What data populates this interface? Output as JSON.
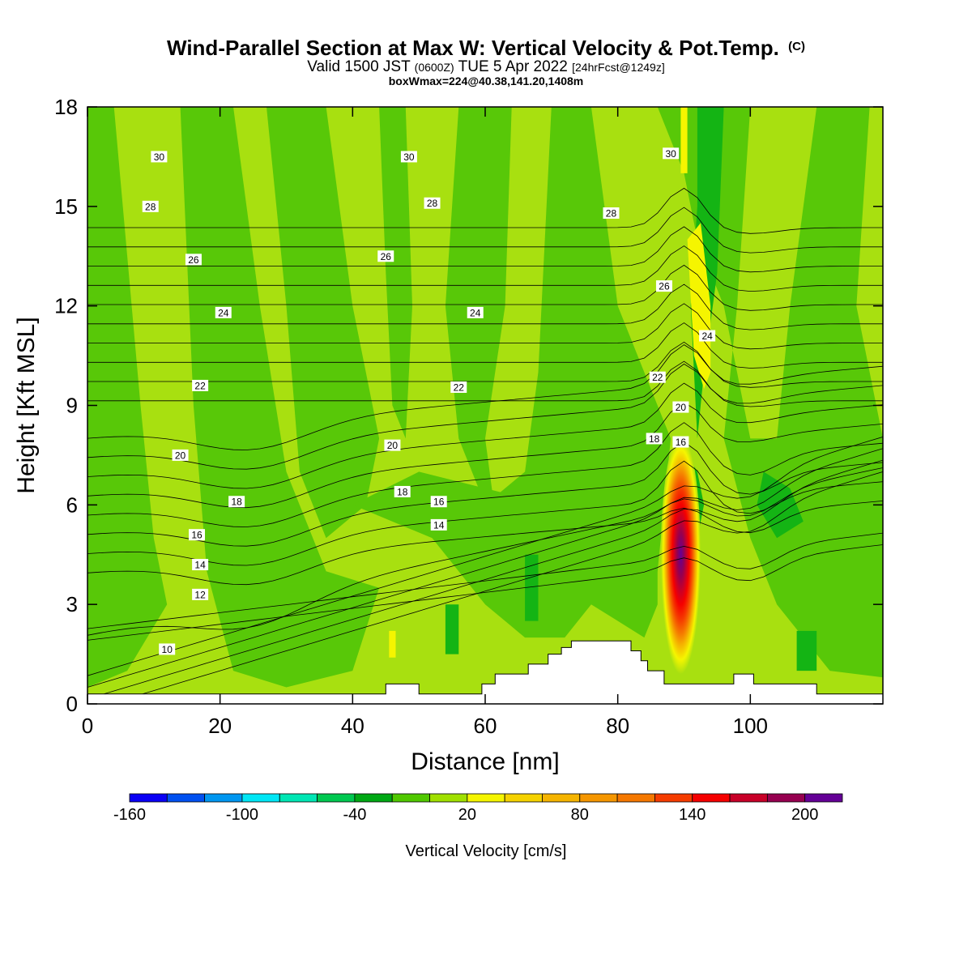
{
  "title": {
    "main": "Wind-Parallel Section at Max W: Vertical Velocity & Pot.Temp.",
    "copyright": "(C)",
    "valid_prefix": "Valid 1500 JST",
    "valid_utc": "(0600Z)",
    "valid_date": "TUE 5 Apr 2022",
    "valid_fcst": "[24hrFcst@1249z]",
    "box": "boxWmax=224@40.38,141.20,1408m"
  },
  "chart_data": {
    "type": "contour",
    "xlabel": "Distance [nm]",
    "ylabel": "Height [Kft MSL]",
    "xlim": [
      0,
      120
    ],
    "ylim": [
      0,
      18
    ],
    "x_ticks": [
      "0",
      "20",
      "40",
      "60",
      "80",
      "100"
    ],
    "x_tick_values": [
      0,
      20,
      40,
      60,
      80,
      100
    ],
    "y_ticks": [
      "0",
      "3",
      "6",
      "9",
      "12",
      "15",
      "18"
    ],
    "y_tick_values": [
      0,
      3,
      6,
      9,
      12,
      15,
      18
    ],
    "colorbar": {
      "label": "Vertical Velocity [cm/s]",
      "levels": [
        -160,
        -140,
        -120,
        -100,
        -80,
        -60,
        -40,
        -20,
        0,
        20,
        40,
        60,
        80,
        100,
        120,
        140,
        160,
        180,
        200,
        220
      ],
      "colors": [
        "#0a00f5",
        "#0050f0",
        "#0096f0",
        "#00e6f5",
        "#00e6b4",
        "#00c850",
        "#00a814",
        "#50c800",
        "#a0e000",
        "#f5f500",
        "#f5d200",
        "#f5b400",
        "#f59600",
        "#f57800",
        "#f53c00",
        "#f50000",
        "#c80028",
        "#960050",
        "#640096"
      ],
      "tick_labels": [
        "-160",
        "-100",
        "-40",
        "20",
        "80",
        "140",
        "200"
      ],
      "tick_values": [
        -160,
        -100,
        -40,
        20,
        80,
        140,
        200
      ]
    },
    "fill_colors": {
      "background": "#a8e010",
      "weak_down": "#58c808",
      "moderate_down": "#14b414",
      "weak_up": "#f5f500",
      "max_updraft": "#640096"
    },
    "max_updraft_cm_s": 224,
    "max_updraft_location": {
      "distance_nm": 89.5,
      "height_kft": 4.5
    },
    "theta_contour_labels": [
      {
        "text": "30",
        "x": 10.8,
        "y": 16.5
      },
      {
        "text": "30",
        "x": 48.5,
        "y": 16.5
      },
      {
        "text": "30",
        "x": 88.0,
        "y": 16.6
      },
      {
        "text": "28",
        "x": 9.5,
        "y": 15.0
      },
      {
        "text": "28",
        "x": 52.0,
        "y": 15.1
      },
      {
        "text": "28",
        "x": 79.0,
        "y": 14.8
      },
      {
        "text": "26",
        "x": 16.0,
        "y": 13.4
      },
      {
        "text": "26",
        "x": 45.0,
        "y": 13.5
      },
      {
        "text": "26",
        "x": 87.0,
        "y": 12.6
      },
      {
        "text": "24",
        "x": 20.5,
        "y": 11.8
      },
      {
        "text": "24",
        "x": 58.5,
        "y": 11.8
      },
      {
        "text": "24",
        "x": 93.5,
        "y": 11.1
      },
      {
        "text": "22",
        "x": 17.0,
        "y": 9.6
      },
      {
        "text": "22",
        "x": 56.0,
        "y": 9.55
      },
      {
        "text": "22",
        "x": 86.0,
        "y": 9.85
      },
      {
        "text": "20",
        "x": 14.0,
        "y": 7.5
      },
      {
        "text": "20",
        "x": 46.0,
        "y": 7.8
      },
      {
        "text": "20",
        "x": 89.5,
        "y": 8.95
      },
      {
        "text": "18",
        "x": 22.5,
        "y": 6.1
      },
      {
        "text": "18",
        "x": 47.5,
        "y": 6.4
      },
      {
        "text": "18",
        "x": 85.5,
        "y": 8.0
      },
      {
        "text": "16",
        "x": 16.5,
        "y": 5.1
      },
      {
        "text": "16",
        "x": 53.0,
        "y": 6.1
      },
      {
        "text": "16",
        "x": 89.5,
        "y": 7.9
      },
      {
        "text": "14",
        "x": 17.0,
        "y": 4.2
      },
      {
        "text": "14",
        "x": 53.0,
        "y": 5.4
      },
      {
        "text": "12",
        "x": 17.0,
        "y": 3.3
      },
      {
        "text": "10",
        "x": 12.0,
        "y": 1.65
      }
    ],
    "terrain": [
      [
        0,
        0.3
      ],
      [
        45,
        0.3
      ],
      [
        45,
        0.6
      ],
      [
        50,
        0.6
      ],
      [
        50,
        0.3
      ],
      [
        59.5,
        0.3
      ],
      [
        59.5,
        0.6
      ],
      [
        61.5,
        0.6
      ],
      [
        61.5,
        0.9
      ],
      [
        66.5,
        0.9
      ],
      [
        66.5,
        1.2
      ],
      [
        69.5,
        1.2
      ],
      [
        69.5,
        1.5
      ],
      [
        71.5,
        1.5
      ],
      [
        71.5,
        1.7
      ],
      [
        73,
        1.7
      ],
      [
        73,
        1.9
      ],
      [
        82,
        1.9
      ],
      [
        82,
        1.6
      ],
      [
        83.5,
        1.6
      ],
      [
        83.5,
        1.3
      ],
      [
        84.5,
        1.3
      ],
      [
        84.5,
        1.0
      ],
      [
        87,
        1.0
      ],
      [
        87,
        0.6
      ],
      [
        97.5,
        0.6
      ],
      [
        97.5,
        0.9
      ],
      [
        100.5,
        0.9
      ],
      [
        100.5,
        0.6
      ],
      [
        110,
        0.6
      ],
      [
        110,
        0.3
      ],
      [
        120,
        0.3
      ]
    ]
  }
}
